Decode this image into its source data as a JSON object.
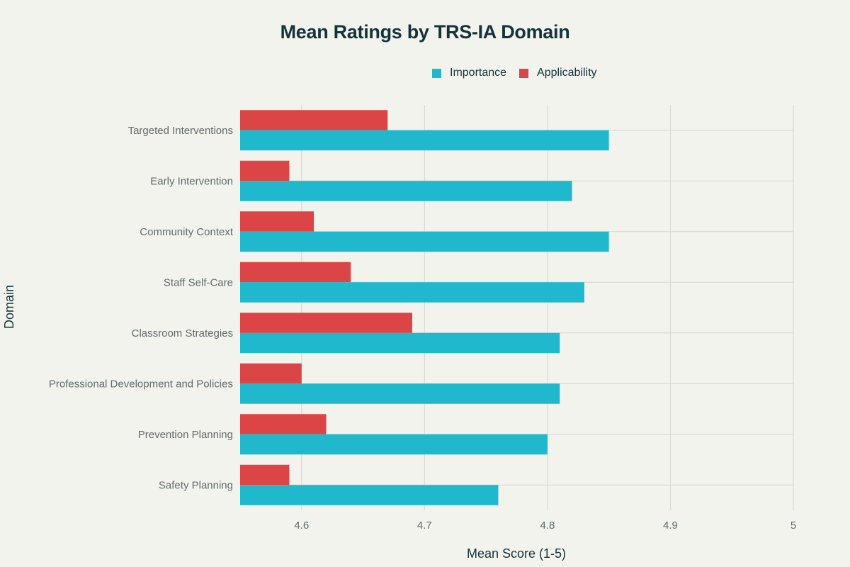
{
  "chart_data": {
    "type": "bar",
    "orientation": "horizontal",
    "title": "Mean Ratings by TRS-IA Domain",
    "xlabel": "Mean Score (1-5)",
    "ylabel": "Domain",
    "xlim": [
      4.55,
      5.0
    ],
    "xticks": [
      4.6,
      4.7,
      4.8,
      4.9,
      5
    ],
    "xtick_labels": [
      "4.6",
      "4.7",
      "4.8",
      "4.9",
      "5"
    ],
    "grid": true,
    "legend_position": "top-right",
    "categories": [
      "Targeted Interventions",
      "Early Intervention",
      "Community Context",
      "Staff Self-Care",
      "Classroom Strategies",
      "Professional Development and Policies",
      "Prevention Planning",
      "Safety Planning"
    ],
    "series": [
      {
        "name": "Importance",
        "color": "#1fb8cd",
        "values": [
          4.85,
          4.82,
          4.85,
          4.83,
          4.81,
          4.81,
          4.8,
          4.76
        ]
      },
      {
        "name": "Applicability",
        "color": "#db4545",
        "values": [
          4.67,
          4.59,
          4.61,
          4.64,
          4.69,
          4.6,
          4.62,
          4.59
        ]
      }
    ]
  }
}
